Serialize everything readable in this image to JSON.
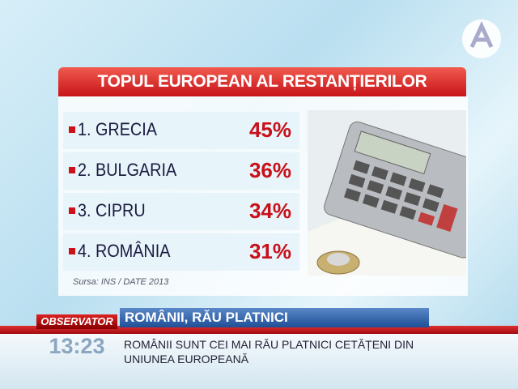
{
  "header": {
    "title": "TOPUL EUROPEAN AL RESTANȚIERILOR"
  },
  "table": {
    "rows": [
      [
        "1. GRECIA",
        "45%"
      ],
      [
        "2. BULGARIA",
        "36%"
      ],
      [
        "3. CIPRU",
        "34%"
      ],
      [
        "4. ROMÂNIA",
        "31%"
      ]
    ]
  },
  "source": "Sursa: INS / DATE 2013",
  "ticker": {
    "brand": "OBSERVATOR",
    "time": "13:23",
    "headline": "ROMÂNII, RĂU PLATNICI",
    "subtitle": "ROMÂNII SUNT CEI MAI RĂU PLATNICI CETĂȚENI DIN UNIUNEA EUROPEANĂ"
  }
}
